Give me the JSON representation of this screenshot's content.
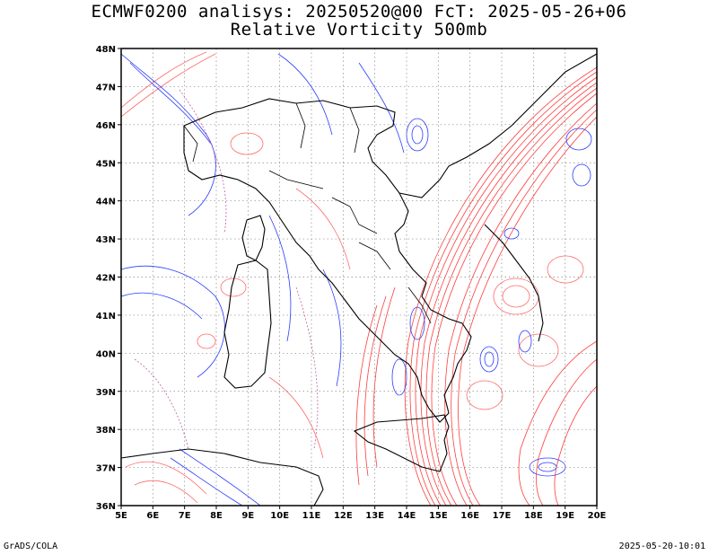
{
  "title_line1": "ECMWF0200 analisys: 20250520@00 FcT: 2025-05-26+06",
  "title_line2": "Relative Vorticity 500mb",
  "footer_left": "GrADS/COLA",
  "footer_right": "2025-05-20-10:01",
  "map": {
    "lon_labels": [
      "5E",
      "6E",
      "7E",
      "8E",
      "9E",
      "10E",
      "11E",
      "12E",
      "13E",
      "14E",
      "15E",
      "16E",
      "17E",
      "18E",
      "19E",
      "20E"
    ],
    "lat_labels": [
      "48N",
      "47N",
      "46N",
      "45N",
      "44N",
      "43N",
      "42N",
      "41N",
      "40N",
      "39N",
      "38N",
      "37N",
      "36N"
    ],
    "colors": {
      "positive": "#ff3c3c",
      "negative": "#2a3cff",
      "coast": "#000000",
      "grid": "#888888"
    }
  }
}
